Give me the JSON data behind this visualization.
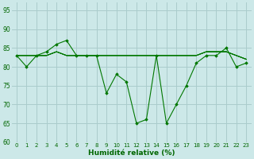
{
  "xlabel": "Humidité relative (%)",
  "bg_color": "#cce8e8",
  "grid_color": "#aacccc",
  "line_color": "#007700",
  "marker_color": "#007700",
  "ylim": [
    60,
    97
  ],
  "xlim": [
    -0.5,
    23.5
  ],
  "yticks": [
    60,
    65,
    70,
    75,
    80,
    85,
    90,
    95
  ],
  "xticks": [
    0,
    1,
    2,
    3,
    4,
    5,
    6,
    7,
    8,
    9,
    10,
    11,
    12,
    13,
    14,
    15,
    16,
    17,
    18,
    19,
    20,
    21,
    22,
    23
  ],
  "main_series": [
    83,
    80,
    83,
    84,
    86,
    87,
    83,
    83,
    83,
    73,
    78,
    76,
    65,
    66,
    83,
    65,
    70,
    75,
    81,
    83,
    83,
    85,
    80,
    81
  ],
  "flat_series": [
    [
      83,
      83,
      83,
      83,
      84,
      83,
      83,
      83,
      83,
      83,
      83,
      83,
      83,
      83,
      83,
      83,
      83,
      83,
      83,
      84,
      84,
      84,
      83,
      82
    ],
    [
      83,
      83,
      83,
      83,
      84,
      83,
      83,
      83,
      83,
      83,
      83,
      83,
      83,
      83,
      83,
      83,
      83,
      83,
      83,
      84,
      84,
      84,
      83,
      82
    ],
    [
      83,
      83,
      83,
      83,
      84,
      83,
      83,
      83,
      83,
      83,
      83,
      83,
      83,
      83,
      83,
      83,
      83,
      83,
      83,
      84,
      84,
      84,
      83,
      82
    ],
    [
      83,
      83,
      83,
      83,
      84,
      83,
      83,
      83,
      83,
      83,
      83,
      83,
      83,
      83,
      83,
      83,
      83,
      83,
      83,
      84,
      84,
      84,
      83,
      82
    ]
  ]
}
